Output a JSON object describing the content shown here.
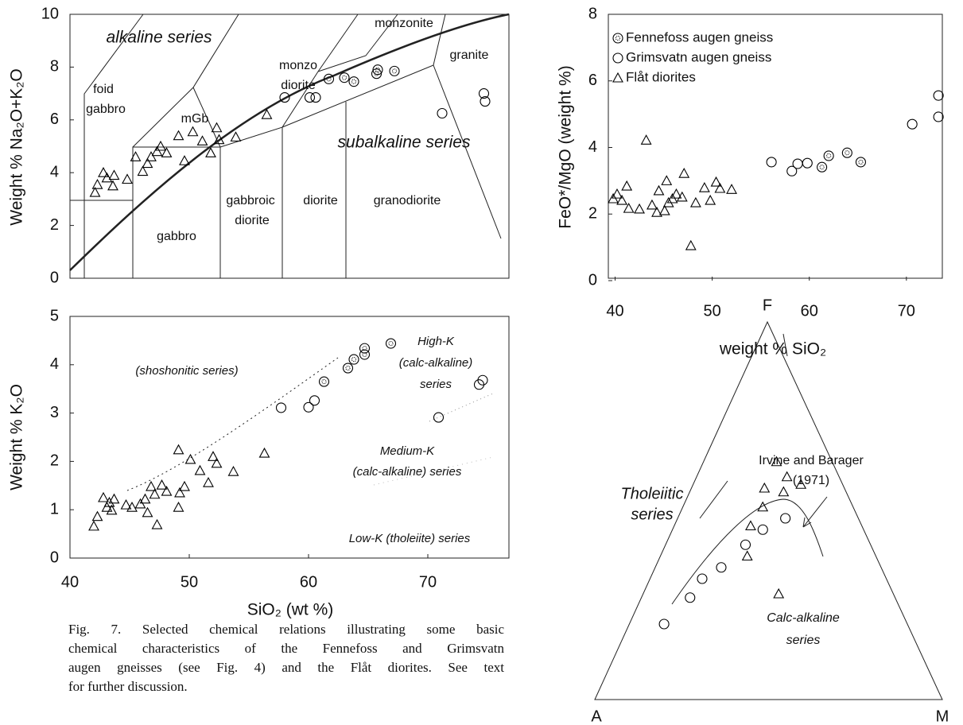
{
  "caption": [
    "Fig. 7. Selected chemical relations illustrating some basic",
    "chemical characteristics of the Fennefoss and Grimsvatn",
    "augen gneisses (see Fig. 4) and the Flåt diorites. See text",
    "for further discussion."
  ],
  "chart_data": [
    {
      "type": "scatter",
      "ylabel": "Weight % Na₂O+K₂O",
      "xlim": [
        40,
        76.8
      ],
      "ylim": [
        0,
        10
      ],
      "yticks": [
        0,
        2,
        4,
        6,
        8,
        10
      ],
      "annotations": [
        "alkaline series",
        "foid",
        "gabbro",
        "mGb",
        "monzo",
        "diorite",
        "monzonite",
        "granite",
        "subalkaline series",
        "gabbroic",
        "diorite",
        "diorite",
        "granodiorite",
        "gabbro"
      ],
      "series": [
        {
          "marker": "dotted-circle",
          "color": "#000000",
          "x": [
            61.7,
            63,
            63.8,
            65.7,
            65.8,
            67.2
          ],
          "values": [
            7.55,
            7.6,
            7.45,
            7.75,
            7.9,
            7.85
          ]
        },
        {
          "marker": "circle",
          "color": "#000000",
          "x": [
            58,
            60.1,
            60.6,
            71.2,
            74.7,
            74.8
          ],
          "values": [
            6.85,
            6.85,
            6.85,
            6.25,
            7.0,
            6.7
          ]
        },
        {
          "marker": "triangle",
          "color": "#000000",
          "x": [
            42.1,
            42.3,
            42.8,
            43.1,
            43.7,
            43.6,
            44.8,
            45.5,
            46.1,
            46.5,
            46.8,
            47.3,
            47.6,
            48.1,
            49.1,
            49.6,
            50.3,
            51.1,
            51.8,
            52.3,
            52.5,
            53.9,
            56.5
          ],
          "values": [
            3.25,
            3.55,
            4.0,
            3.8,
            3.9,
            3.5,
            3.75,
            4.6,
            4.05,
            4.35,
            4.6,
            4.8,
            5.0,
            4.75,
            5.4,
            4.45,
            5.55,
            5.2,
            4.75,
            5.7,
            5.25,
            5.35,
            6.2
          ]
        }
      ]
    },
    {
      "type": "scatter",
      "xlabel": "weight % SiO₂",
      "ylabel": "FeO*/MgO (weight %)",
      "xlim": [
        39.3,
        73.7
      ],
      "ylim": [
        0,
        8
      ],
      "xticks": [
        40,
        50,
        60,
        70
      ],
      "yticks": [
        0,
        2,
        4,
        6,
        8
      ],
      "legend": "upper left",
      "series": [
        {
          "name": "Fennefoss augen gneiss",
          "marker": "dotted-circle",
          "color": "#000000",
          "x": [
            61.3,
            62,
            63.9,
            65.3
          ],
          "values": [
            3.41,
            3.75,
            3.84,
            3.56
          ]
        },
        {
          "name": "Grimsvatn augen gneiss",
          "marker": "circle",
          "color": "#000000",
          "x": [
            56.1,
            58.2,
            58.8,
            59.8,
            70.6,
            73.3,
            73.3
          ],
          "values": [
            3.56,
            3.29,
            3.51,
            3.53,
            4.7,
            5.56,
            4.92
          ]
        },
        {
          "name": "Flåt diorites",
          "marker": "triangle",
          "color": "#000000",
          "x": [
            39.8,
            40.2,
            40.7,
            41.2,
            41.4,
            42.5,
            43.8,
            44.3,
            44.5,
            45.1,
            45.3,
            45.5,
            45.9,
            46.3,
            47.1,
            46.9,
            47.8,
            48.3,
            49.2,
            49.8,
            50.4,
            50.8,
            52,
            43.2
          ],
          "values": [
            2.46,
            2.6,
            2.41,
            2.84,
            2.17,
            2.15,
            2.27,
            2.05,
            2.7,
            2.1,
            3.0,
            2.34,
            2.46,
            2.6,
            3.22,
            2.51,
            1.05,
            2.34,
            2.79,
            2.41,
            2.96,
            2.77,
            2.74,
            4.22
          ]
        }
      ]
    },
    {
      "type": "scatter",
      "xlabel": "SiO₂  (wt %)",
      "ylabel": "Weight % K₂O",
      "xlim": [
        40,
        76.8
      ],
      "ylim": [
        0,
        5
      ],
      "xticks": [
        40,
        50,
        60,
        70
      ],
      "yticks": [
        0,
        1,
        2,
        3,
        4,
        5
      ],
      "annotations": [
        "(shoshonitic series)",
        "High-K",
        "(calc-alkaline)",
        "series",
        "Medium-K",
        "(calc-alkaline) series",
        "Low-K (tholeiite) series"
      ],
      "series": [
        {
          "marker": "dotted-circle",
          "color": "#000000",
          "x": [
            61.3,
            64.7,
            64.7,
            66.9,
            63.8,
            63.3
          ],
          "values": [
            3.65,
            4.34,
            4.21,
            4.44,
            4.11,
            3.93
          ]
        },
        {
          "marker": "circle",
          "color": "#000000",
          "x": [
            57.7,
            60,
            60.5,
            70.9,
            74.3,
            74.6
          ],
          "values": [
            3.11,
            3.12,
            3.26,
            2.91,
            3.59,
            3.68
          ]
        },
        {
          "marker": "triangle",
          "color": "#000000",
          "x": [
            42,
            42.3,
            42.8,
            43.1,
            43.3,
            43.7,
            43.5,
            44.7,
            45.2,
            45.9,
            46.3,
            46.5,
            46.8,
            47.1,
            47.3,
            47.7,
            48.1,
            49.1,
            49.2,
            49.6,
            49.1,
            50.1,
            50.9,
            51.6,
            52,
            52.3,
            53.7,
            56.3
          ],
          "values": [
            0.66,
            0.86,
            1.25,
            1.05,
            1.15,
            1.22,
            0.99,
            1.1,
            1.05,
            1.12,
            1.22,
            0.94,
            1.48,
            1.32,
            0.69,
            1.51,
            1.38,
            1.05,
            1.35,
            1.48,
            2.24,
            2.04,
            1.81,
            1.56,
            2.1,
            1.96,
            1.79,
            2.17
          ]
        }
      ]
    },
    {
      "type": "ternary",
      "vertices": [
        "F",
        "A",
        "M"
      ],
      "annotations": [
        "Tholeiitic",
        "series",
        "Irvine and Barager",
        "(1971)",
        "Calc-alkaline",
        "series"
      ],
      "series": [
        {
          "marker": "circle",
          "color": "#000000",
          "values": [
            [
              70,
              20,
              10
            ],
            [
              59,
              27,
              14
            ],
            [
              53,
              32,
              15
            ],
            [
              46,
              35,
              19
            ],
            [
              36,
              41,
              23
            ],
            [
              29,
              45,
              26
            ],
            [
              21,
              48,
              31
            ]
          ]
        },
        {
          "marker": "triangle",
          "color": "#000000",
          "values": [
            [
              26,
              51,
              23
            ],
            [
              18,
              55,
              27
            ],
            [
              15,
              59,
              26
            ],
            [
              16,
              63,
              21
            ],
            [
              33,
              28,
              39
            ],
            [
              37,
              38,
              25
            ],
            [
              12,
              57,
              31
            ],
            [
              23,
              56,
              21
            ],
            [
              32,
              46,
              22
            ]
          ]
        }
      ]
    }
  ]
}
